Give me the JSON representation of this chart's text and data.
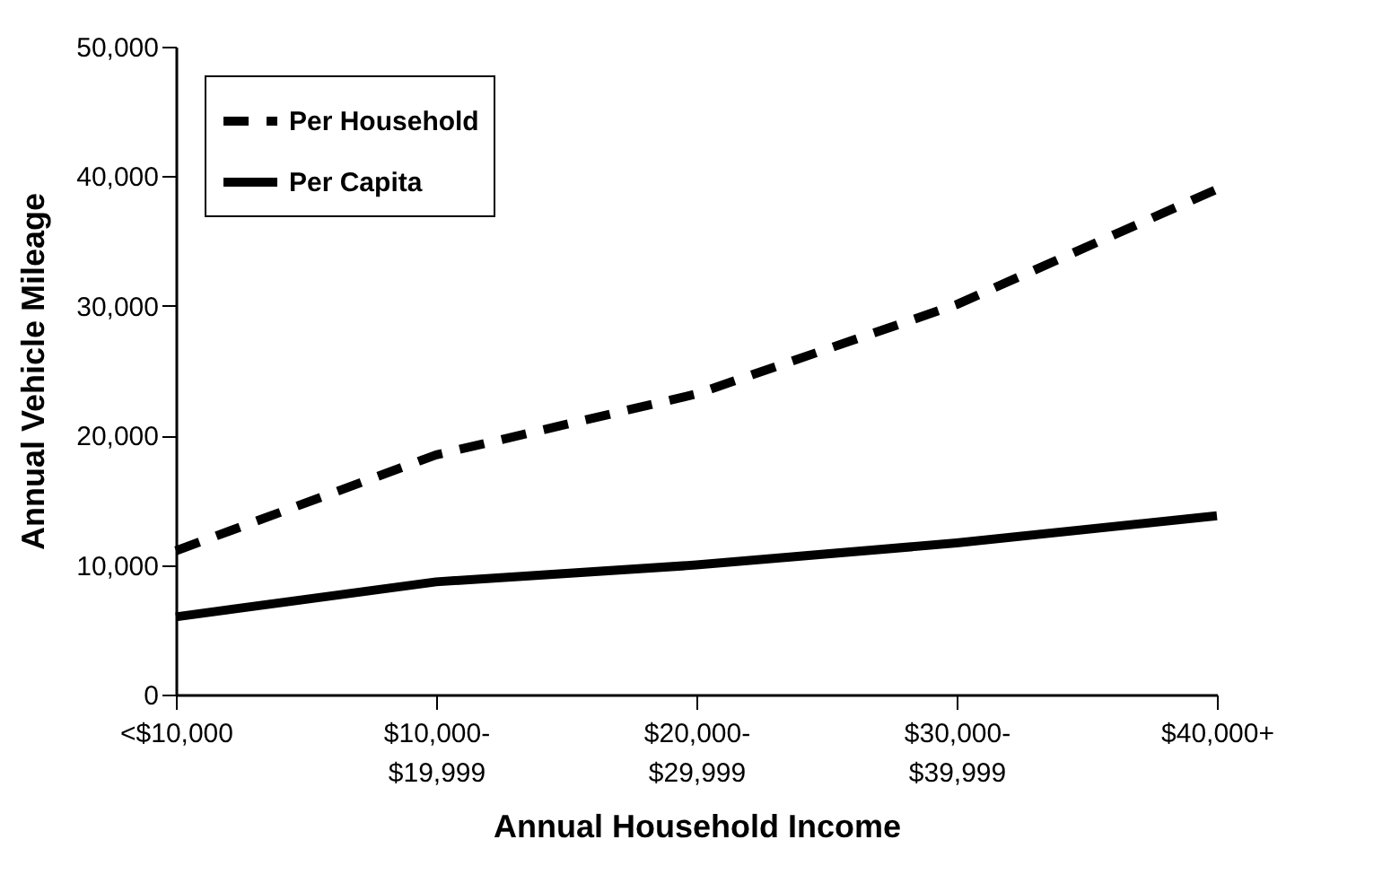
{
  "chart_data": {
    "type": "line",
    "xlabel": "Annual Household Income",
    "ylabel": "Annual Vehicle Mileage",
    "categories": [
      "<$10,000",
      "$10,000-\n$19,999",
      "$20,000-\n$29,999",
      "$30,000-\n$39,999",
      "$40,000+"
    ],
    "series": [
      {
        "name": "Per Household",
        "color": "#000000",
        "line_style": "dashed",
        "values": [
          11100,
          18500,
          23200,
          30100,
          39000
        ]
      },
      {
        "name": "Per Capita",
        "color": "#000000",
        "line_style": "solid",
        "values": [
          6000,
          8700,
          10000,
          11700,
          13800
        ]
      }
    ],
    "ylim": [
      0,
      50000
    ],
    "yticks": [
      0,
      {
        "value": 10000,
        "label": "10,000"
      },
      {
        "value": 20000,
        "label": "20,000"
      },
      {
        "value": 30000,
        "label": "30,000"
      },
      {
        "value": 40000,
        "label": "40,000"
      },
      {
        "value": 50000,
        "label": "50,000"
      }
    ],
    "grid": false,
    "legend": "top left",
    "marker": "none"
  }
}
